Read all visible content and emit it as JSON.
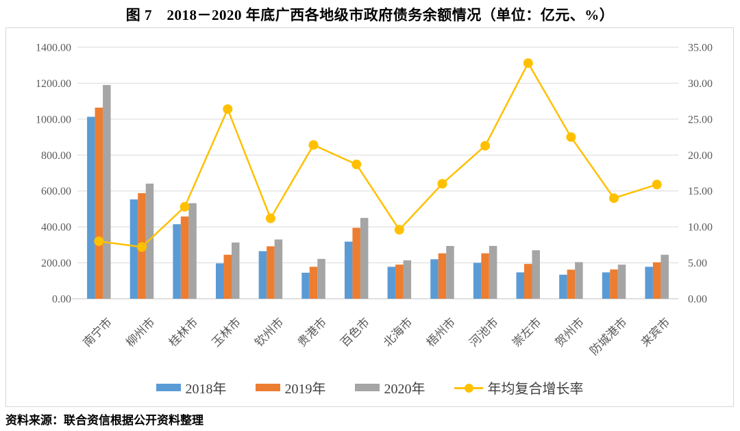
{
  "chart_data": {
    "type": "bar+line",
    "title": "图 7　2018－2020 年底广西各地级市政府债务余额情况（单位：亿元、%）",
    "source": "资料来源：联合资信根据公开资料整理",
    "units": "亿元、%",
    "grid": true,
    "legend_position": "bottom",
    "categories": [
      "南宁市",
      "柳州市",
      "桂林市",
      "玉林市",
      "钦州市",
      "贵港市",
      "百色市",
      "北海市",
      "梧州市",
      "河池市",
      "崇左市",
      "贺州市",
      "防城港市",
      "来宾市"
    ],
    "series": [
      {
        "name": "2018年",
        "kind": "bar",
        "axis": "left",
        "color": "#5B9BD5",
        "values": [
          1013,
          553,
          415,
          197,
          265,
          145,
          318,
          178,
          220,
          200,
          147,
          134,
          147,
          178
        ]
      },
      {
        "name": "2019年",
        "kind": "bar",
        "axis": "left",
        "color": "#ED7D31",
        "values": [
          1064,
          588,
          458,
          245,
          292,
          178,
          395,
          190,
          253,
          253,
          194,
          162,
          163,
          203
        ]
      },
      {
        "name": "2020年",
        "kind": "bar",
        "axis": "left",
        "color": "#A5A5A5",
        "values": [
          1190,
          641,
          532,
          313,
          330,
          222,
          450,
          214,
          294,
          294,
          270,
          204,
          190,
          245
        ]
      },
      {
        "name": "年均复合增长率",
        "kind": "line",
        "axis": "right",
        "color": "#FFC000",
        "values": [
          8.0,
          7.2,
          12.8,
          26.4,
          11.2,
          21.4,
          18.7,
          9.6,
          16.0,
          21.3,
          32.8,
          22.5,
          14.0,
          15.9
        ]
      }
    ],
    "left_axis": {
      "min": 0,
      "max": 1400,
      "step": 200,
      "tick_labels": [
        "0.00",
        "200.00",
        "400.00",
        "600.00",
        "800.00",
        "1000.00",
        "1200.00",
        "1400.00"
      ]
    },
    "right_axis": {
      "min": 0,
      "max": 35,
      "step": 5,
      "tick_labels": [
        "0.00",
        "5.00",
        "10.00",
        "15.00",
        "20.00",
        "25.00",
        "30.00",
        "35.00"
      ]
    },
    "colors": {
      "gridline": "#D9D9D9",
      "axis_line": "#BFBFBF",
      "tick_text": "#595959"
    }
  }
}
